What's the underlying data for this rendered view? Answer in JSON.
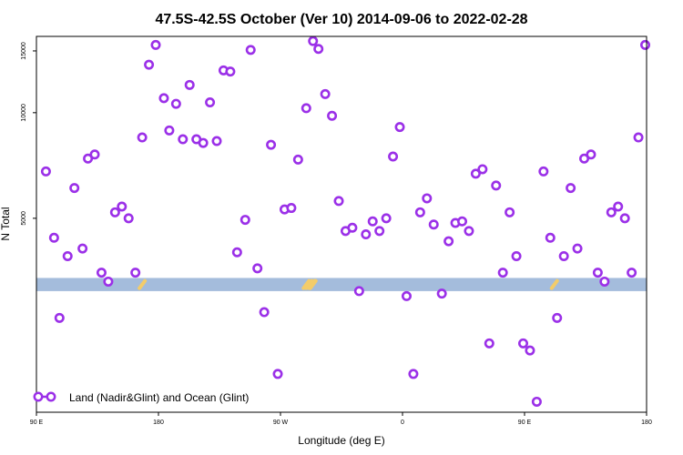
{
  "chart_data": {
    "type": "scatter",
    "title": "47.5S-42.5S October (Ver 10)   2014-09-06 to 2022-02-28",
    "xlabel": "Longitude (deg E)",
    "ylabel": "N Total",
    "x_ticks": [
      {
        "value": 90,
        "label": "90 E"
      },
      {
        "value": 180,
        "label": "180"
      },
      {
        "value": 270,
        "label": "90 W"
      },
      {
        "value": 360,
        "label": "0"
      },
      {
        "value": 450,
        "label": "90 E"
      },
      {
        "value": 540,
        "label": "180"
      }
    ],
    "y_ticks": [
      {
        "value": 5000,
        "label": "5000"
      },
      {
        "value": 10000,
        "label": "10000"
      },
      {
        "value": 15000,
        "label": "15000"
      }
    ],
    "xlim": [
      90,
      540
    ],
    "ylim": [
      1400,
      16500
    ],
    "y_scale": "log",
    "grid": false,
    "legend_position": "bottom-left",
    "point_color": "#9b30e8",
    "band": {
      "color": "#a4bcdc",
      "y_range": [
        3100,
        3380
      ]
    },
    "land_marks": {
      "color": "#f3cc6a",
      "x_values": [
        168,
        289,
        291,
        293,
        294,
        472
      ]
    },
    "series": [
      {
        "name": "Land (Nadir&Glint) and Ocean (Glint)",
        "x": [
          97,
          103,
          107,
          113,
          118,
          124,
          128,
          133,
          138,
          143,
          148,
          153,
          158,
          163,
          168,
          173,
          178,
          184,
          188,
          193,
          198,
          203,
          208,
          213,
          218,
          223,
          228,
          233,
          238,
          244,
          248,
          253,
          258,
          263,
          268,
          273,
          278,
          283,
          289,
          294,
          298,
          303,
          308,
          313,
          318,
          323,
          328,
          333,
          338,
          343,
          348,
          353,
          358,
          363,
          368,
          373,
          378,
          383,
          389,
          394,
          399,
          404,
          409,
          414,
          419,
          424,
          429,
          434,
          439,
          444,
          449,
          454,
          459,
          464,
          469,
          474,
          479,
          484,
          489,
          494,
          499,
          504,
          509,
          514,
          519,
          524,
          529,
          534,
          539
        ],
        "y": [
          6800,
          4400,
          2600,
          3900,
          6100,
          4100,
          7400,
          7600,
          3500,
          3300,
          5200,
          5400,
          5000,
          3500,
          8500,
          13700,
          15600,
          11000,
          8900,
          10600,
          8400,
          12000,
          8400,
          8200,
          10700,
          8300,
          13200,
          13100,
          4000,
          4950,
          15100,
          3600,
          2700,
          8100,
          1800,
          5300,
          5350,
          7350,
          10300,
          16000,
          15200,
          11300,
          9800,
          5600,
          4600,
          4700,
          3100,
          4500,
          4900,
          4600,
          5000,
          7500,
          9100,
          3000,
          1800,
          5200,
          5700,
          4800,
          3050,
          4300,
          4850,
          4900,
          4600,
          6700,
          6900,
          2200,
          6200,
          3500,
          5200,
          3900,
          2200,
          2100,
          1500,
          6800,
          4400,
          2600,
          3900,
          6100,
          4100,
          7400,
          7600,
          3500,
          3300,
          5200,
          5400,
          5000,
          3500,
          8500,
          15600
        ]
      }
    ]
  }
}
